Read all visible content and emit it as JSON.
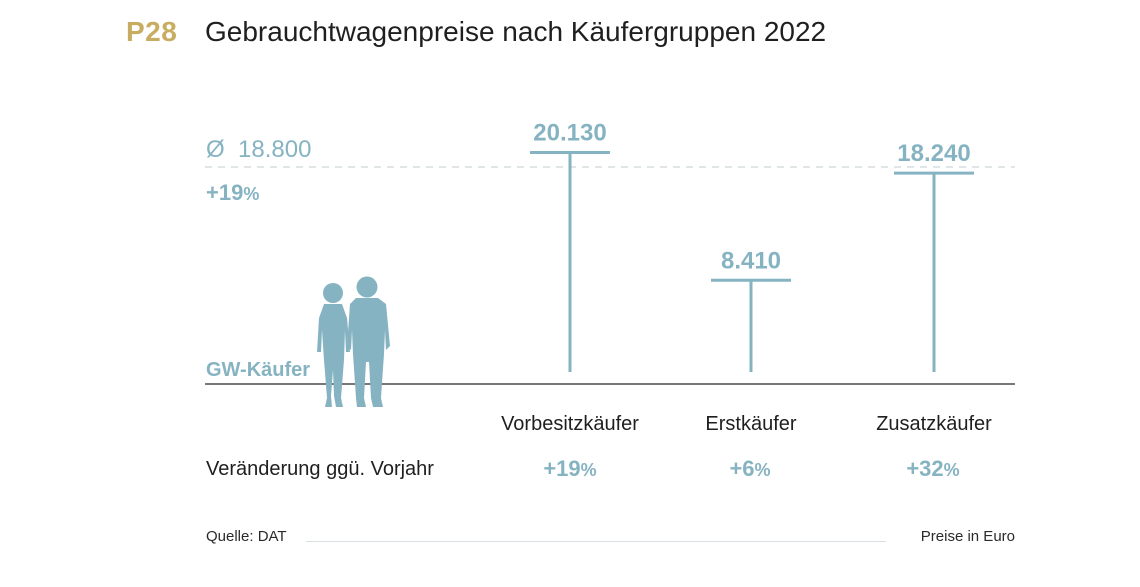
{
  "header": {
    "code": "P28",
    "title": "Gebrauchtwagenpreise nach Käufergruppen 2022"
  },
  "colors": {
    "accent_gold": "#c8ad60",
    "series": "#86b3c2",
    "dash": "#d6dde0",
    "baseline": "#4a4a4a"
  },
  "average": {
    "label": "Ø  18.800",
    "change": "+19",
    "change_suffix": "%"
  },
  "baseline_label": "GW-Käufer",
  "changes_row_label": "Veränderung ggü. Vorjahr",
  "changes": [
    {
      "value": "+19",
      "suffix": "%"
    },
    {
      "value": "+6",
      "suffix": "%"
    },
    {
      "value": "+32",
      "suffix": "%"
    }
  ],
  "footer": {
    "source": "Quelle: DAT",
    "unit_note": "Preise in Euro"
  },
  "icons": {
    "people": "couple-silhouette-icon"
  },
  "chart_data": {
    "type": "bar",
    "categories": [
      "Vorbesitzkäufer",
      "Erstkäufer",
      "Zusatzkäufer"
    ],
    "values": [
      20130,
      8410,
      18240
    ],
    "value_labels": [
      "20.130",
      "8.410",
      "18.240"
    ],
    "reference_line": {
      "label": "Ø  18.800",
      "value": 18800
    },
    "ylim": [
      0,
      21000
    ],
    "grid": false,
    "legend": false
  }
}
